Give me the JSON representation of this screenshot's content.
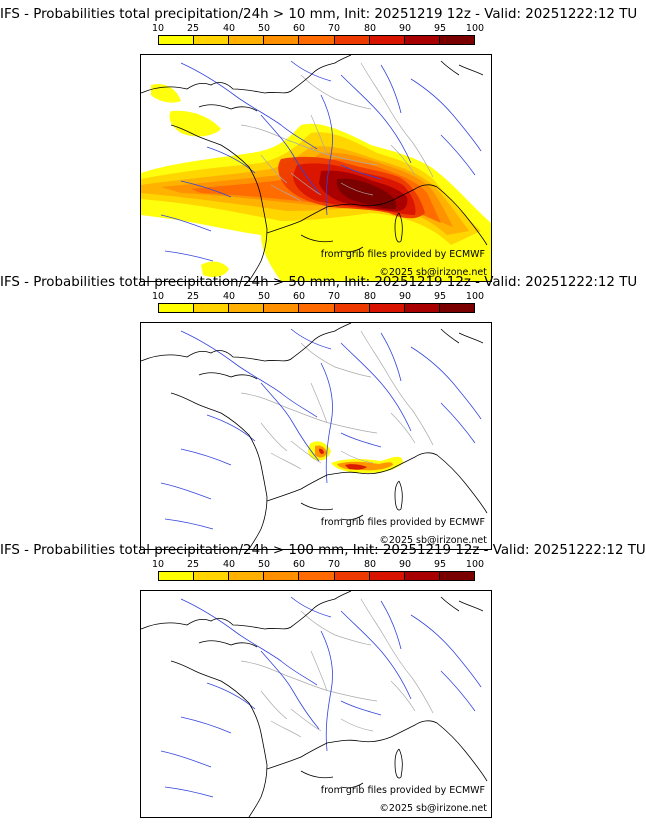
{
  "panels": [
    {
      "title": "IFS - Probabilities total precipitation/24h > 10 mm, Init: 20251219 12z - Valid: 20251222:12 TU",
      "threshold": "10 mm",
      "level": "high"
    },
    {
      "title": "IFS - Probabilities total precipitation/24h > 50 mm, Init: 20251219 12z - Valid: 20251222:12 TU",
      "threshold": "50 mm",
      "level": "medium"
    },
    {
      "title": "IFS - Probabilities total precipitation/24h > 100 mm, Init: 20251219 12z - Valid: 20251222:12 TU",
      "threshold": "100 mm",
      "level": "none"
    }
  ],
  "legend": {
    "labels": [
      "10",
      "25",
      "40",
      "50",
      "60",
      "70",
      "80",
      "90",
      "95",
      "100"
    ],
    "colors": [
      "#ffff00",
      "#ffd400",
      "#ffb000",
      "#ff9000",
      "#ff6a00",
      "#ee3a00",
      "#d81400",
      "#a80000",
      "#7a0000",
      "#4a0000"
    ]
  },
  "credits": {
    "grib": "from grib files provided by ECMWF",
    "copyright": "©2025 sb@irizone.net"
  }
}
